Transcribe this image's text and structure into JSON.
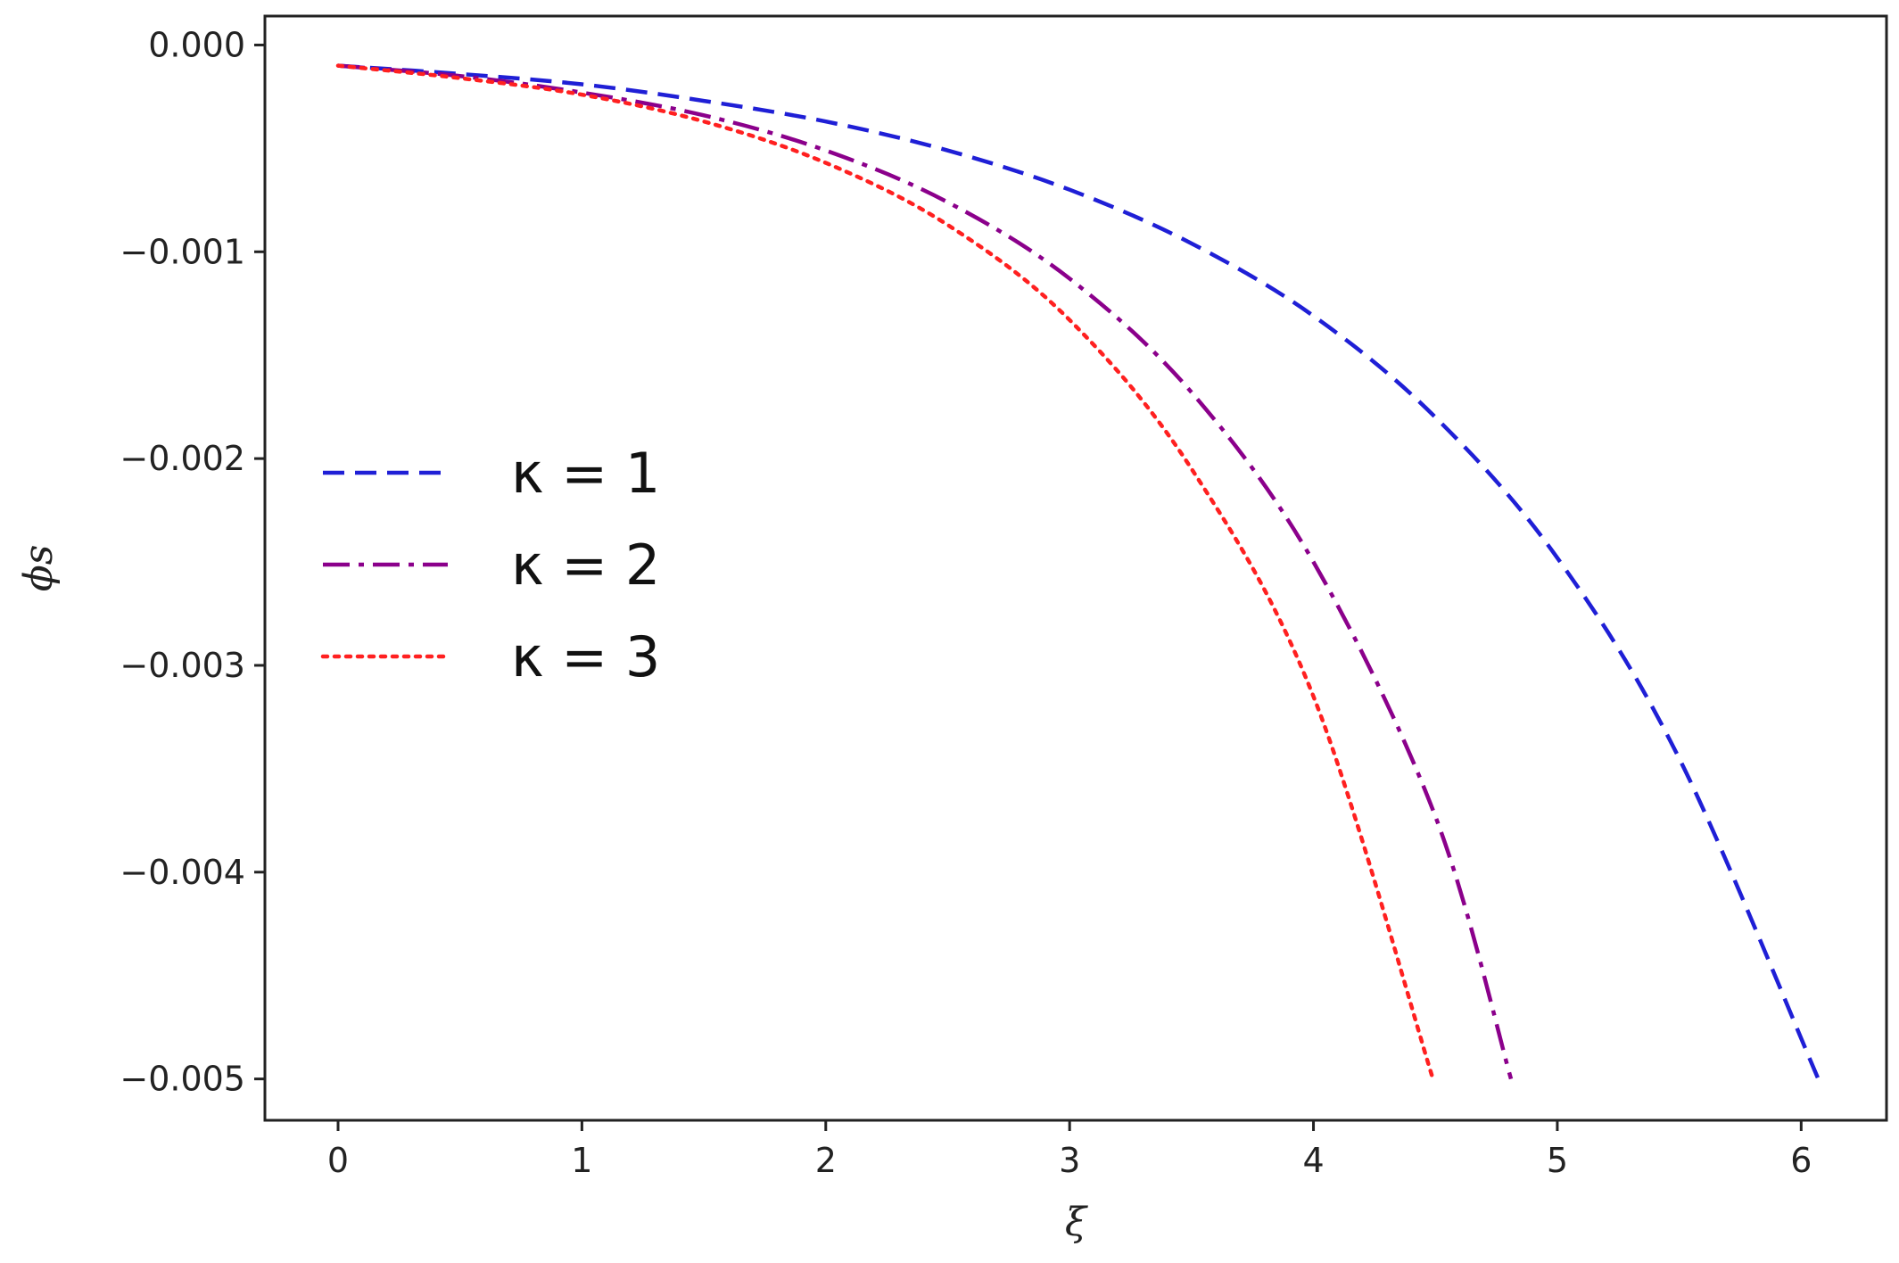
{
  "chart_data": {
    "type": "line",
    "title": "",
    "xlabel": "ξ",
    "ylabel": "ϕs",
    "xlim": [
      -0.3,
      6.35
    ],
    "ylim": [
      -0.0052,
      0.00014
    ],
    "xticks": [
      0,
      1,
      2,
      3,
      4,
      5,
      6
    ],
    "xtick_labels": [
      "0",
      "1",
      "2",
      "3",
      "4",
      "5",
      "6"
    ],
    "yticks": [
      0.0,
      -0.001,
      -0.002,
      -0.003,
      -0.004,
      -0.005
    ],
    "ytick_labels": [
      "0.000",
      "−0.001",
      "−0.002",
      "−0.003",
      "−0.004",
      "−0.005"
    ],
    "grid": false,
    "legend_position": "center-left",
    "series": [
      {
        "name": "κ = 1",
        "color": "#1f1fd6",
        "linestyle": "dashed",
        "x": [
          0,
          0.5,
          1.0,
          1.5,
          2.0,
          2.5,
          3.0,
          3.5,
          4.0,
          4.5,
          5.0,
          5.5,
          6.07
        ],
        "y": [
          -0.0001,
          -0.00014,
          -0.00019,
          -0.00027,
          -0.00037,
          -0.00051,
          -0.0007,
          -0.00096,
          -0.00131,
          -0.0018,
          -0.00248,
          -0.00345,
          -0.005
        ]
      },
      {
        "name": "κ = 2",
        "color": "#8b008b",
        "linestyle": "dashdot",
        "x": [
          0,
          0.5,
          1.0,
          1.5,
          2.0,
          2.5,
          3.0,
          3.5,
          4.0,
          4.5,
          4.81
        ],
        "y": [
          -0.0001,
          -0.00015,
          -0.00023,
          -0.00034,
          -0.00051,
          -0.00076,
          -0.00113,
          -0.00168,
          -0.0025,
          -0.00373,
          -0.005
        ]
      },
      {
        "name": "κ = 3",
        "color": "#ff2020",
        "linestyle": "dotted",
        "x": [
          0,
          0.5,
          1.0,
          1.5,
          2.0,
          2.5,
          3.0,
          3.5,
          4.0,
          4.49
        ],
        "y": [
          -0.0001,
          -0.00016,
          -0.00024,
          -0.00037,
          -0.00057,
          -0.00087,
          -0.00133,
          -0.00205,
          -0.00315,
          -0.005
        ]
      }
    ]
  }
}
